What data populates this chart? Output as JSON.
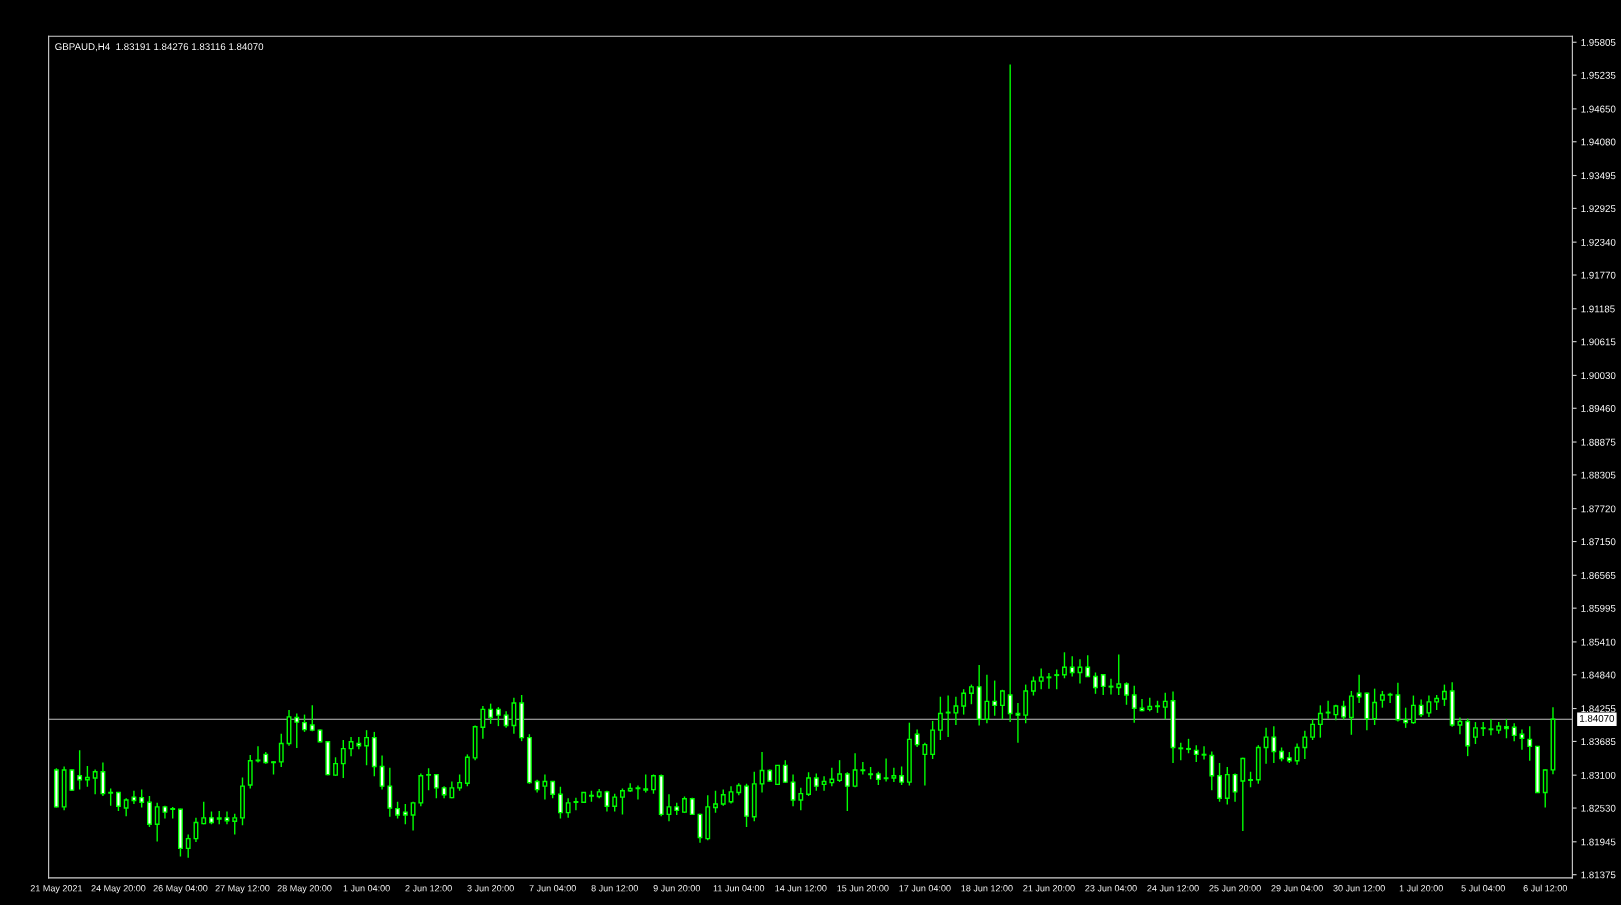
{
  "chart_data": {
    "type": "candlestick",
    "title": "GBPAUD,H4  1.83191 1.84276 1.83116 1.84070",
    "color": "#00ff00",
    "categories": [
      "21 May 2021",
      null,
      null,
      null,
      null,
      null,
      null,
      null,
      "24 May 20:00",
      null,
      null,
      null,
      null,
      null,
      null,
      null,
      "26 May 04:00",
      null,
      null,
      null,
      null,
      null,
      null,
      null,
      "27 May 12:00",
      null,
      null,
      null,
      null,
      null,
      null,
      null,
      "28 May 20:00",
      null,
      null,
      null,
      null,
      null,
      null,
      null,
      "1 Jun 04:00",
      null,
      null,
      null,
      null,
      null,
      null,
      null,
      "2 Jun 12:00",
      null,
      null,
      null,
      null,
      null,
      null,
      null,
      "3 Jun 20:00",
      null,
      null,
      null,
      null,
      null,
      null,
      null,
      "7 Jun 04:00",
      null,
      null,
      null,
      null,
      null,
      null,
      null,
      "8 Jun 12:00",
      null,
      null,
      null,
      null,
      null,
      null,
      null,
      "9 Jun 20:00",
      null,
      null,
      null,
      null,
      null,
      null,
      null,
      "11 Jun 04:00",
      null,
      null,
      null,
      null,
      null,
      null,
      null,
      "14 Jun 12:00",
      null,
      null,
      null,
      null,
      null,
      null,
      null,
      "15 Jun 20:00",
      null,
      null,
      null,
      null,
      null,
      null,
      null,
      "17 Jun 04:00",
      null,
      null,
      null,
      null,
      null,
      null,
      null,
      "18 Jun 12:00",
      null,
      null,
      null,
      null,
      null,
      null,
      null,
      "21 Jun 20:00",
      null,
      null,
      null,
      null,
      null,
      null,
      null,
      "23 Jun 04:00",
      null,
      null,
      null,
      null,
      null,
      null,
      null,
      "24 Jun 12:00",
      null,
      null,
      null,
      null,
      null,
      null,
      null,
      "25 Jun 20:00",
      null,
      null,
      null,
      null,
      null,
      null,
      null,
      "29 Jun 04:00",
      null,
      null,
      null,
      null,
      null,
      null,
      null,
      "30 Jun 12:00",
      null,
      null,
      null,
      null,
      null,
      null,
      null,
      "1 Jul 20:00",
      null,
      null,
      null,
      null,
      null,
      null,
      null,
      "5 Jul 04:00",
      null,
      null,
      null,
      null,
      null,
      null,
      null,
      "6 Jul 12:00",
      null
    ],
    "ohlc": [
      [
        1.8319,
        1.8322,
        1.8254,
        1.8255
      ],
      [
        1.8255,
        1.8325,
        1.8249,
        1.8319
      ],
      [
        1.8319,
        1.832,
        1.8283,
        1.8284
      ],
      [
        1.8309,
        1.8353,
        1.8285,
        1.8302
      ],
      [
        1.8302,
        1.8326,
        1.829,
        1.8306
      ],
      [
        1.8305,
        1.832,
        1.8277,
        1.8316
      ],
      [
        1.8316,
        1.8332,
        1.8274,
        1.8278
      ],
      [
        1.828,
        1.8287,
        1.8257,
        1.8279
      ],
      [
        1.828,
        1.8281,
        1.8248,
        1.8256
      ],
      [
        1.8253,
        1.827,
        1.8239,
        1.8267
      ],
      [
        1.8272,
        1.8283,
        1.826,
        1.8266
      ],
      [
        1.8271,
        1.8285,
        1.8254,
        1.8263
      ],
      [
        1.8263,
        1.8274,
        1.822,
        1.8225
      ],
      [
        1.8225,
        1.8262,
        1.8195,
        1.8255
      ],
      [
        1.8255,
        1.8257,
        1.8235,
        1.8246
      ],
      [
        1.8252,
        1.8255,
        1.8235,
        1.8251
      ],
      [
        1.8251,
        1.8252,
        1.8169,
        1.8183
      ],
      [
        1.8183,
        1.8207,
        1.8167,
        1.82
      ],
      [
        1.82,
        1.8236,
        1.8194,
        1.8228
      ],
      [
        1.8226,
        1.8264,
        1.8225,
        1.8236
      ],
      [
        1.8236,
        1.8247,
        1.8225,
        1.8228
      ],
      [
        1.8234,
        1.8248,
        1.8225,
        1.8236
      ],
      [
        1.8236,
        1.8247,
        1.8225,
        1.8231
      ],
      [
        1.823,
        1.8243,
        1.8207,
        1.8236
      ],
      [
        1.8236,
        1.8306,
        1.8223,
        1.8291
      ],
      [
        1.8293,
        1.8345,
        1.8287,
        1.8335
      ],
      [
        1.8335,
        1.836,
        1.8332,
        1.8336
      ],
      [
        1.8346,
        1.835,
        1.833,
        1.8332
      ],
      [
        1.8333,
        1.8334,
        1.8311,
        1.8332
      ],
      [
        1.8333,
        1.8382,
        1.8324,
        1.8365
      ],
      [
        1.8365,
        1.8423,
        1.8361,
        1.8411
      ],
      [
        1.841,
        1.8417,
        1.8357,
        1.8402
      ],
      [
        1.8401,
        1.8415,
        1.8385,
        1.8389
      ],
      [
        1.8397,
        1.8431,
        1.8386,
        1.8388
      ],
      [
        1.8388,
        1.8389,
        1.8367,
        1.8368
      ],
      [
        1.8368,
        1.8369,
        1.831,
        1.8311
      ],
      [
        1.831,
        1.8341,
        1.8309,
        1.833
      ],
      [
        1.833,
        1.8371,
        1.8305,
        1.8356
      ],
      [
        1.8356,
        1.8376,
        1.8343,
        1.8368
      ],
      [
        1.8365,
        1.8376,
        1.8355,
        1.8361
      ],
      [
        1.8361,
        1.8388,
        1.8327,
        1.8375
      ],
      [
        1.8375,
        1.8385,
        1.8308,
        1.8325
      ],
      [
        1.8325,
        1.8344,
        1.8285,
        1.8291
      ],
      [
        1.8291,
        1.8323,
        1.8238,
        1.8253
      ],
      [
        1.8252,
        1.8264,
        1.8235,
        1.8241
      ],
      [
        1.8246,
        1.826,
        1.8225,
        1.8241
      ],
      [
        1.8241,
        1.8264,
        1.8214,
        1.8262
      ],
      [
        1.8262,
        1.8313,
        1.8256,
        1.8309
      ],
      [
        1.831,
        1.8322,
        1.8284,
        1.8311
      ],
      [
        1.8311,
        1.8312,
        1.827,
        1.8288
      ],
      [
        1.8288,
        1.8291,
        1.827,
        1.8276
      ],
      [
        1.8271,
        1.8299,
        1.827,
        1.8288
      ],
      [
        1.8288,
        1.8311,
        1.8283,
        1.8297
      ],
      [
        1.8296,
        1.8346,
        1.8291,
        1.8341
      ],
      [
        1.834,
        1.8396,
        1.8336,
        1.8394
      ],
      [
        1.8393,
        1.843,
        1.8373,
        1.8424
      ],
      [
        1.8424,
        1.8434,
        1.8399,
        1.841
      ],
      [
        1.8424,
        1.8428,
        1.8395,
        1.8414
      ],
      [
        1.8414,
        1.8421,
        1.8392,
        1.8396
      ],
      [
        1.8396,
        1.8444,
        1.8382,
        1.8435
      ],
      [
        1.8435,
        1.8449,
        1.8369,
        1.8375
      ],
      [
        1.8375,
        1.8381,
        1.8295,
        1.8297
      ],
      [
        1.8299,
        1.8302,
        1.828,
        1.8285
      ],
      [
        1.8291,
        1.8311,
        1.8268,
        1.8299
      ],
      [
        1.8299,
        1.83,
        1.827,
        1.8277
      ],
      [
        1.8277,
        1.829,
        1.8235,
        1.8245
      ],
      [
        1.8245,
        1.827,
        1.8236,
        1.8262
      ],
      [
        1.8263,
        1.8271,
        1.8249,
        1.8264
      ],
      [
        1.8263,
        1.8281,
        1.8262,
        1.828
      ],
      [
        1.8274,
        1.8283,
        1.8264,
        1.8275
      ],
      [
        1.8273,
        1.8286,
        1.827,
        1.8281
      ],
      [
        1.8281,
        1.8283,
        1.8247,
        1.8256
      ],
      [
        1.8256,
        1.8278,
        1.8247,
        1.8272
      ],
      [
        1.8272,
        1.8287,
        1.8242,
        1.8283
      ],
      [
        1.8283,
        1.8296,
        1.8281,
        1.8287
      ],
      [
        1.8287,
        1.8292,
        1.8268,
        1.8288
      ],
      [
        1.8284,
        1.8311,
        1.828,
        1.8286
      ],
      [
        1.8285,
        1.8311,
        1.8278,
        1.8309
      ],
      [
        1.8309,
        1.8311,
        1.8239,
        1.8242
      ],
      [
        1.8242,
        1.8277,
        1.823,
        1.8255
      ],
      [
        1.8255,
        1.8262,
        1.8241,
        1.8249
      ],
      [
        1.8246,
        1.8273,
        1.8245,
        1.8269
      ],
      [
        1.8269,
        1.8271,
        1.8241,
        1.8242
      ],
      [
        1.8242,
        1.8243,
        1.8193,
        1.8202
      ],
      [
        1.82,
        1.8275,
        1.8197,
        1.8255
      ],
      [
        1.8254,
        1.8283,
        1.8245,
        1.826
      ],
      [
        1.826,
        1.8285,
        1.8257,
        1.8276
      ],
      [
        1.8264,
        1.8291,
        1.8261,
        1.8281
      ],
      [
        1.828,
        1.8296,
        1.8275,
        1.8292
      ],
      [
        1.8291,
        1.8295,
        1.822,
        1.8239
      ],
      [
        1.8238,
        1.8316,
        1.823,
        1.8295
      ],
      [
        1.8295,
        1.835,
        1.828,
        1.8318
      ],
      [
        1.8318,
        1.832,
        1.8299,
        1.83
      ],
      [
        1.8294,
        1.8327,
        1.8293,
        1.8327
      ],
      [
        1.8327,
        1.8336,
        1.8297,
        1.8298
      ],
      [
        1.8298,
        1.8311,
        1.8256,
        1.8267
      ],
      [
        1.8267,
        1.8288,
        1.8249,
        1.8278
      ],
      [
        1.8277,
        1.8315,
        1.8274,
        1.8305
      ],
      [
        1.8305,
        1.8313,
        1.8283,
        1.8291
      ],
      [
        1.8294,
        1.8308,
        1.8283,
        1.8299
      ],
      [
        1.8297,
        1.8323,
        1.8291,
        1.8303
      ],
      [
        1.8301,
        1.8336,
        1.8298,
        1.8312
      ],
      [
        1.8312,
        1.8315,
        1.8248,
        1.8291
      ],
      [
        1.8291,
        1.8348,
        1.8289,
        1.8319
      ],
      [
        1.8318,
        1.8333,
        1.8311,
        1.8319
      ],
      [
        1.8312,
        1.8324,
        1.8303,
        1.8311
      ],
      [
        1.8312,
        1.8316,
        1.8293,
        1.8303
      ],
      [
        1.8304,
        1.8339,
        1.8299,
        1.8305
      ],
      [
        1.8305,
        1.8323,
        1.8298,
        1.8309
      ],
      [
        1.8309,
        1.8325,
        1.8293,
        1.8298
      ],
      [
        1.8298,
        1.8401,
        1.8292,
        1.8372
      ],
      [
        1.8381,
        1.8389,
        1.8359,
        1.8363
      ],
      [
        1.8346,
        1.8366,
        1.8292,
        1.8363
      ],
      [
        1.8346,
        1.8404,
        1.8338,
        1.8388
      ],
      [
        1.8388,
        1.8446,
        1.8371,
        1.8417
      ],
      [
        1.8418,
        1.8448,
        1.8376,
        1.8419
      ],
      [
        1.8418,
        1.8446,
        1.8397,
        1.843
      ],
      [
        1.843,
        1.8459,
        1.8415,
        1.8452
      ],
      [
        1.8452,
        1.8467,
        1.8433,
        1.8463
      ],
      [
        1.8463,
        1.8501,
        1.8396,
        1.8407
      ],
      [
        1.8407,
        1.8484,
        1.84,
        1.8438
      ],
      [
        1.8438,
        1.8474,
        1.8413,
        1.8431
      ],
      [
        1.8431,
        1.8458,
        1.8407,
        1.8456
      ],
      [
        1.8449,
        1.9542,
        1.8402,
        1.8417
      ],
      [
        1.8417,
        1.8435,
        1.8366,
        1.8414
      ],
      [
        1.8414,
        1.8467,
        1.84,
        1.8456
      ],
      [
        1.8456,
        1.8481,
        1.8448,
        1.8473
      ],
      [
        1.8473,
        1.8495,
        1.8459,
        1.848
      ],
      [
        1.8479,
        1.8487,
        1.846,
        1.848
      ],
      [
        1.8483,
        1.8493,
        1.8459,
        1.8484
      ],
      [
        1.8484,
        1.8523,
        1.8478,
        1.8497
      ],
      [
        1.8497,
        1.8516,
        1.8481,
        1.8488
      ],
      [
        1.8488,
        1.8511,
        1.8469,
        1.8497
      ],
      [
        1.8497,
        1.8518,
        1.848,
        1.8481
      ],
      [
        1.8481,
        1.8488,
        1.8451,
        1.8462
      ],
      [
        1.8484,
        1.8485,
        1.8449,
        1.8464
      ],
      [
        1.8463,
        1.8477,
        1.845,
        1.8464
      ],
      [
        1.8462,
        1.8519,
        1.8449,
        1.8468
      ],
      [
        1.8468,
        1.8471,
        1.8432,
        1.8449
      ],
      [
        1.8449,
        1.8465,
        1.8401,
        1.8426
      ],
      [
        1.8426,
        1.8442,
        1.8421,
        1.8422
      ],
      [
        1.8424,
        1.8444,
        1.8421,
        1.8429
      ],
      [
        1.8429,
        1.8439,
        1.8418,
        1.843
      ],
      [
        1.8428,
        1.8453,
        1.8407,
        1.8438
      ],
      [
        1.8439,
        1.8455,
        1.8331,
        1.8358
      ],
      [
        1.8357,
        1.8366,
        1.8336,
        1.8356
      ],
      [
        1.8356,
        1.8373,
        1.8348,
        1.8355
      ],
      [
        1.8353,
        1.8362,
        1.8333,
        1.8346
      ],
      [
        1.8346,
        1.836,
        1.8337,
        1.8345
      ],
      [
        1.8344,
        1.8351,
        1.8284,
        1.8309
      ],
      [
        1.8309,
        1.8331,
        1.8264,
        1.827
      ],
      [
        1.827,
        1.8324,
        1.8259,
        1.8311
      ],
      [
        1.8311,
        1.8313,
        1.8264,
        1.8281
      ],
      [
        1.83,
        1.834,
        1.8213,
        1.8339
      ],
      [
        1.8301,
        1.8316,
        1.8289,
        1.8302
      ],
      [
        1.8302,
        1.8362,
        1.8295,
        1.8358
      ],
      [
        1.8358,
        1.8392,
        1.833,
        1.8376
      ],
      [
        1.8376,
        1.8395,
        1.8331,
        1.8351
      ],
      [
        1.8351,
        1.8358,
        1.8334,
        1.8339
      ],
      [
        1.834,
        1.835,
        1.8331,
        1.8335
      ],
      [
        1.8335,
        1.8365,
        1.8328,
        1.8358
      ],
      [
        1.8358,
        1.8387,
        1.8338,
        1.8376
      ],
      [
        1.8376,
        1.8407,
        1.8371,
        1.8398
      ],
      [
        1.8398,
        1.8431,
        1.8375,
        1.8417
      ],
      [
        1.8418,
        1.8439,
        1.8408,
        1.8419
      ],
      [
        1.8415,
        1.8432,
        1.8405,
        1.843
      ],
      [
        1.8429,
        1.8439,
        1.8406,
        1.8411
      ],
      [
        1.841,
        1.8456,
        1.838,
        1.8447
      ],
      [
        1.8452,
        1.8484,
        1.8435,
        1.8446
      ],
      [
        1.8452,
        1.8453,
        1.8388,
        1.8408
      ],
      [
        1.8408,
        1.846,
        1.8397,
        1.8436
      ],
      [
        1.844,
        1.8456,
        1.8427,
        1.8449
      ],
      [
        1.8449,
        1.8453,
        1.8435,
        1.845
      ],
      [
        1.8449,
        1.847,
        1.8403,
        1.8406
      ],
      [
        1.8406,
        1.8427,
        1.8392,
        1.8401
      ],
      [
        1.8401,
        1.8448,
        1.8399,
        1.8431
      ],
      [
        1.8431,
        1.8441,
        1.8411,
        1.8415
      ],
      [
        1.8418,
        1.8448,
        1.8411,
        1.8437
      ],
      [
        1.8437,
        1.8449,
        1.8423,
        1.8443
      ],
      [
        1.8442,
        1.8467,
        1.843,
        1.8455
      ],
      [
        1.8456,
        1.8471,
        1.8394,
        1.8397
      ],
      [
        1.8397,
        1.841,
        1.8381,
        1.8403
      ],
      [
        1.8403,
        1.8408,
        1.8343,
        1.8361
      ],
      [
        1.8376,
        1.8402,
        1.8364,
        1.8392
      ],
      [
        1.8391,
        1.8402,
        1.8378,
        1.8392
      ],
      [
        1.8389,
        1.8407,
        1.8379,
        1.839
      ],
      [
        1.8388,
        1.8402,
        1.8382,
        1.8395
      ],
      [
        1.8394,
        1.8407,
        1.8374,
        1.8391
      ],
      [
        1.8393,
        1.84,
        1.8369,
        1.8379
      ],
      [
        1.8381,
        1.8389,
        1.8354,
        1.8374
      ],
      [
        1.8372,
        1.8395,
        1.8335,
        1.836
      ],
      [
        1.836,
        1.836,
        1.8279,
        1.828
      ],
      [
        1.828,
        1.832,
        1.8254,
        1.8319
      ],
      [
        1.83191,
        1.84276,
        1.83116,
        1.8407
      ]
    ],
    "ylim": [
      1.8132,
      1.9591
    ],
    "yticks": [
      1.81375,
      1.81945,
      {
        "value": 1.8253,
        "label": "1.82530"
      },
      {
        "value": 1.831,
        "label": "1.83100"
      },
      1.83685,
      1.84255,
      {
        "value": 1.8484,
        "label": "1.84840"
      },
      {
        "value": 1.8541,
        "label": "1.85410"
      },
      1.85995,
      1.86565,
      {
        "value": 1.8715,
        "label": "1.87150"
      },
      {
        "value": 1.8772,
        "label": "1.87720"
      },
      1.88305,
      1.88875,
      {
        "value": 1.8946,
        "label": "1.89460"
      },
      {
        "value": 1.9003,
        "label": "1.90030"
      },
      1.90615,
      1.91185,
      {
        "value": 1.9177,
        "label": "1.91770"
      },
      {
        "value": 1.9234,
        "label": "1.92340"
      },
      1.92925,
      1.93495,
      {
        "value": 1.9408,
        "label": "1.94080"
      },
      {
        "value": 1.9465,
        "label": "1.94650"
      },
      1.95235,
      1.95805
    ],
    "ref_lines": [
      {
        "axis": "y",
        "value": 1.8407,
        "label": "1.84070",
        "color": "#c0c0c0"
      }
    ]
  }
}
